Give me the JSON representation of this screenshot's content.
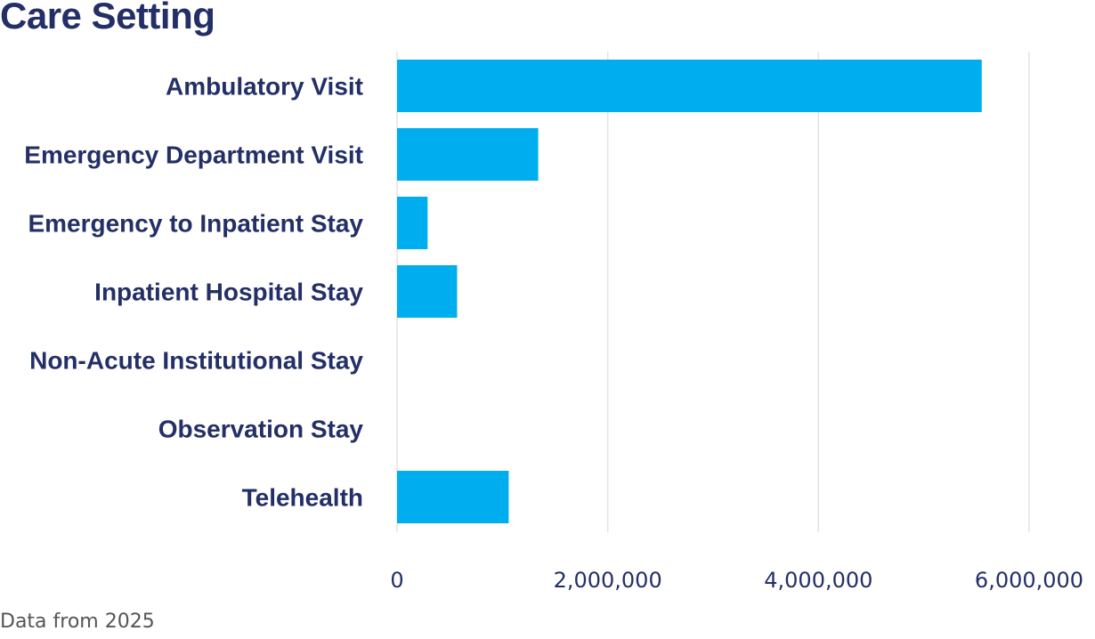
{
  "colors": {
    "bar": "#00adee",
    "text": "#232f66",
    "grid": "#e3e3e3",
    "note": "#555555"
  },
  "chart_data": {
    "type": "bar",
    "orientation": "horizontal",
    "title": "Care Setting",
    "xlabel": "",
    "ylabel": "",
    "categories": [
      "Ambulatory Visit",
      "Emergency Department Visit",
      "Emergency to Inpatient Stay",
      "Inpatient Hospital Stay",
      "Non-Acute Institutional Stay",
      "Observation Stay",
      "Telehealth"
    ],
    "values": [
      5550000,
      1340000,
      290000,
      570000,
      0,
      0,
      1060000
    ],
    "xlim": [
      0,
      6000000
    ],
    "xticks": [
      0,
      2000000,
      4000000,
      6000000
    ],
    "xtick_labels": [
      "0",
      "2,000,000",
      "4,000,000",
      "6,000,000"
    ],
    "grid": true,
    "legend": "none"
  },
  "footer": {
    "note": "Data from 2025"
  }
}
